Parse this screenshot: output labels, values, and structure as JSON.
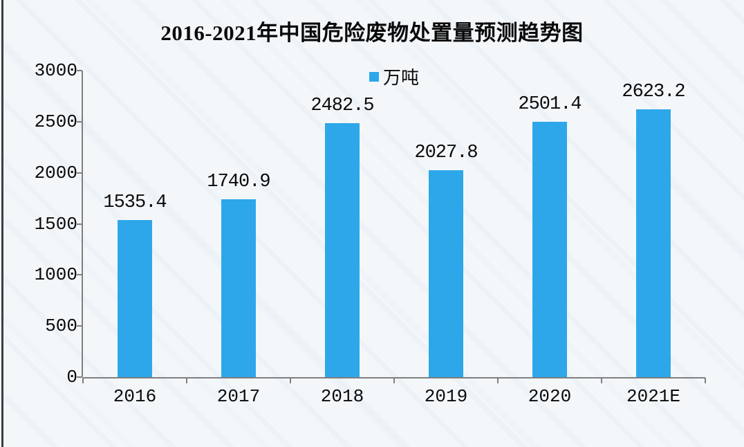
{
  "page": {
    "background": "#f4f7fa",
    "left_edge_line_color": "#3d3f42"
  },
  "chart_data": {
    "type": "bar",
    "title": "2016-2021年中国危险废物处置量预测趋势图",
    "legend": {
      "label": "万吨",
      "position": "top-center",
      "marker_color": "#2da7ea"
    },
    "categories": [
      "2016",
      "2017",
      "2018",
      "2019",
      "2020",
      "2021E"
    ],
    "values": [
      1535.4,
      1740.9,
      2482.5,
      2027.8,
      2501.4,
      2623.2
    ],
    "value_labels": [
      "1535.4",
      "1740.9",
      "2482.5",
      "2027.8",
      "2501.4",
      "2623.2"
    ],
    "xlabel": "",
    "ylabel": "",
    "ylim": [
      0,
      3000
    ],
    "ytick_interval": 500,
    "ytick_labels": [
      "0",
      "500",
      "1000",
      "1500",
      "2000",
      "2500",
      "3000"
    ],
    "grid": false,
    "bar_color": "#2da7ea",
    "axis_color": "#7f7f7f",
    "text_color": "#0a0a0a"
  }
}
